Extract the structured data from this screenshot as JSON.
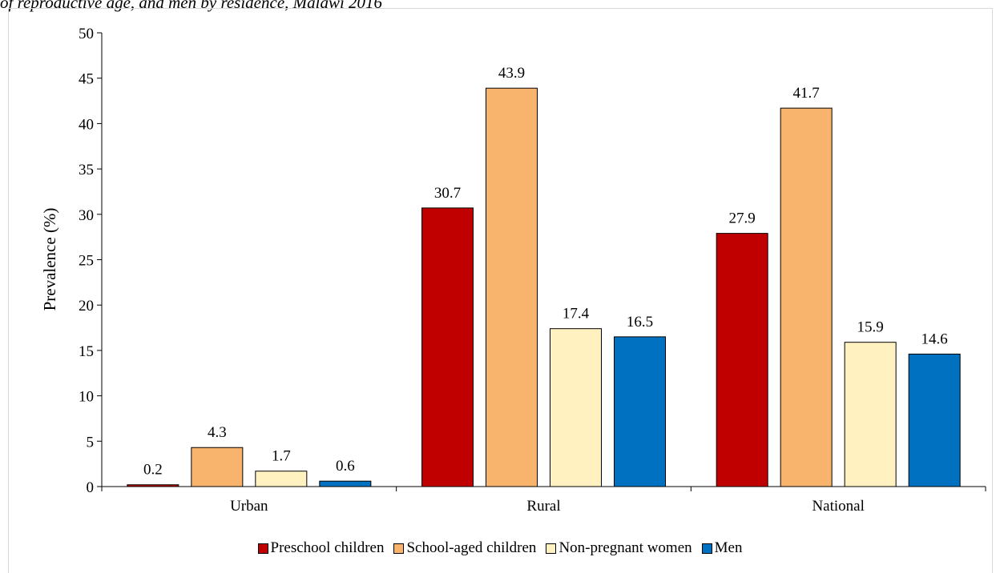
{
  "caption": "of reproductive age, and men by residence, Malawi 2016",
  "chart_data": {
    "type": "bar",
    "categories": [
      "Urban",
      "Rural",
      "National"
    ],
    "series": [
      {
        "name": "Preschool children",
        "color": "#c00000",
        "values": [
          0.2,
          30.7,
          27.9
        ]
      },
      {
        "name": "School-aged children",
        "color": "#f8b46c",
        "values": [
          4.3,
          43.9,
          41.7
        ]
      },
      {
        "name": "Non-pregnant women",
        "color": "#fff2c0",
        "values": [
          1.7,
          17.4,
          15.9
        ]
      },
      {
        "name": "Men",
        "color": "#0070c0",
        "values": [
          0.6,
          16.5,
          14.6
        ]
      }
    ],
    "data_labels": [
      [
        "0.2",
        "30.7",
        "27.9"
      ],
      [
        "4.3",
        "43.9",
        "41.7"
      ],
      [
        "1.7",
        "17.4",
        "15.9"
      ],
      [
        "0.6",
        "16.5",
        "14.6"
      ]
    ],
    "ylabel": "Prevalence (%)",
    "xlabel": "",
    "ylim": [
      0,
      50
    ],
    "yticks": [
      "0",
      "5",
      "10",
      "15",
      "20",
      "25",
      "30",
      "35",
      "40",
      "45",
      "50"
    ],
    "grid": false,
    "legend_position": "bottom"
  }
}
